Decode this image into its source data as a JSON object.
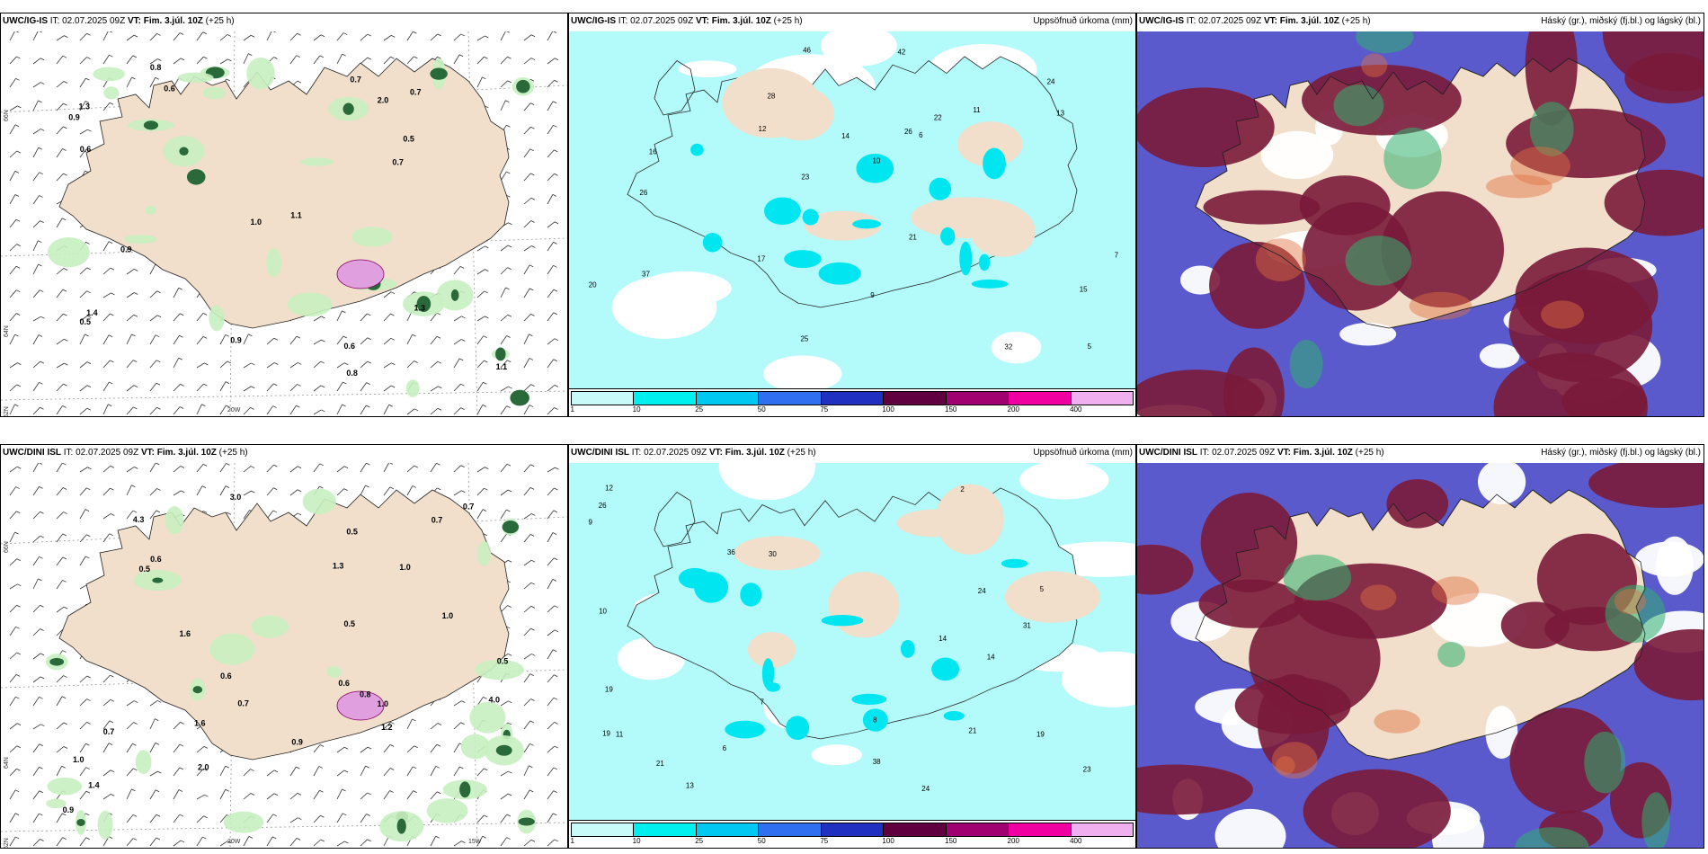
{
  "rows": [
    {
      "model": "UWC/IG-IS",
      "it_label": "IT:",
      "it_value": "02.07.2025 09Z",
      "vt_label": "VT:",
      "vt_value": "Fim. 3.júl. 10Z",
      "lead": "(+25 h)",
      "panel2_title": "Uppsöfnuð úrkoma (mm)",
      "panel3_title": "Háský (gr.), miðský (fj.bl.) og lágský (bl.)",
      "lat_labels": [
        "66N",
        "64N",
        "62N"
      ],
      "lon_labels": [
        "20W"
      ],
      "precip_labels": [
        "1.1",
        "0.8",
        "0.5",
        "0.6",
        "0.9",
        "0.7",
        "0.5",
        "1.3",
        "1.0",
        "0.7",
        "2.0",
        "1.4",
        "0.8",
        "0.9",
        "0.6",
        "0.9",
        "1.1",
        "0.7",
        "0.6",
        "1.3"
      ],
      "accum_labels": [
        "5",
        "10",
        "6",
        "13",
        "25",
        "16",
        "15",
        "14",
        "26",
        "46",
        "37",
        "23",
        "22",
        "21",
        "24",
        "20",
        "12",
        "17",
        "32",
        "42",
        "26",
        "28",
        "11",
        "9",
        "7"
      ]
    },
    {
      "model": "UWC/DINI ISL",
      "it_label": "IT:",
      "it_value": "02.07.2025 09Z",
      "vt_label": "VT:",
      "vt_value": "Fim. 3.júl. 10Z",
      "lead": "(+25 h)",
      "panel2_title": "Uppsöfnuð úrkoma (mm)",
      "panel3_title": "Háský (gr.), miðský (fj.bl.) og lágský (bl.)",
      "lat_labels": [
        "66N",
        "64N",
        "62N"
      ],
      "lon_labels": [
        "20W",
        "15W"
      ],
      "precip_labels": [
        "0.5",
        "0.7",
        "1.6",
        "0.6",
        "0.9",
        "0.5",
        "1.2",
        "1.6",
        "4.3",
        "3.0",
        "0.9",
        "0.6",
        "0.5",
        "0.7",
        "0.7",
        "1.0",
        "0.7",
        "1.4",
        "1.0",
        "1.3",
        "1.0",
        "0.5",
        "0.8",
        "2.0",
        "1.0",
        "0.6",
        "4.0"
      ],
      "accum_labels": [
        "2",
        "8",
        "9",
        "6",
        "14",
        "19",
        "21",
        "24",
        "23",
        "14",
        "31",
        "11",
        "13",
        "30",
        "21",
        "19",
        "24",
        "36",
        "38",
        "26",
        "10",
        "12",
        "19",
        "7",
        "5"
      ]
    }
  ],
  "colorbar": {
    "ticks": [
      "1",
      "10",
      "25",
      "50",
      "75",
      "100",
      "150",
      "200",
      "400"
    ],
    "colors": [
      "#c8fafa",
      "#00f0f0",
      "#00c8f0",
      "#3070f0",
      "#2030c0",
      "#600040",
      "#a00070",
      "#f000a0",
      "#f0b0f0"
    ]
  },
  "colors": {
    "land": "#f1dfcb",
    "green_light": "#c8f0c0",
    "green_dark": "#2a6a3a",
    "cyan": "#b3fafa",
    "cloud_low": "#5a5acd",
    "cloud_mid": "#7a1a3a",
    "cloud_high": "#30b070"
  }
}
